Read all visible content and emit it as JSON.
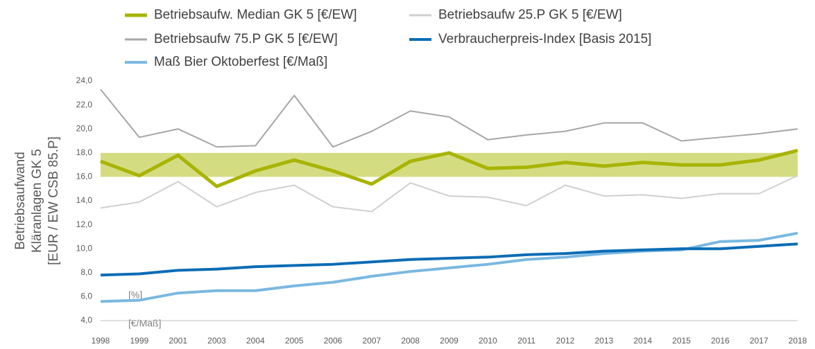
{
  "chart_data": {
    "type": "line",
    "y_label": [
      "Betriebsaufwand",
      "Kläranlagen GK 5",
      "[EUR / EW CSB 85.P]"
    ],
    "categories": [
      "1998",
      "1999",
      "2001",
      "2003",
      "2004",
      "2005",
      "2006",
      "2007",
      "2008",
      "2009",
      "2010",
      "2011",
      "2012",
      "2013",
      "2014",
      "2015",
      "2016",
      "2017",
      "2018"
    ],
    "ylim": [
      4,
      24
    ],
    "yticks": [
      {
        "value": 4,
        "label": "4,0"
      },
      {
        "value": 6,
        "label": "6,0"
      },
      {
        "value": 8,
        "label": "8,0"
      },
      {
        "value": 10,
        "label": "10,0"
      },
      {
        "value": 12,
        "label": "12,0"
      },
      {
        "value": 14,
        "label": "14,0"
      },
      {
        "value": 16,
        "label": "16,0"
      },
      {
        "value": 18,
        "label": "18,0"
      },
      {
        "value": 20,
        "label": "20,0"
      },
      {
        "value": 22,
        "label": "22,0"
      },
      {
        "value": 24,
        "label": "24,0"
      }
    ],
    "band": {
      "range": [
        16,
        18
      ],
      "color": "#d4dc82"
    },
    "series": [
      {
        "name": "Betriebsaufw. Median GK 5 [€/EW]",
        "color": "#a8b400",
        "values": [
          17.3,
          16.1,
          17.8,
          15.2,
          16.5,
          17.4,
          16.5,
          15.4,
          17.3,
          18.0,
          16.7,
          16.8,
          17.2,
          16.9,
          17.2,
          17.0,
          17.0,
          17.4,
          18.2
        ]
      },
      {
        "name": "Betriebsaufw 25.P GK 5 [€/EW]",
        "color": "#cfcfcf",
        "values": [
          13.4,
          13.9,
          15.6,
          13.5,
          14.7,
          15.3,
          13.5,
          13.1,
          15.5,
          14.4,
          14.3,
          13.6,
          15.3,
          14.4,
          14.5,
          14.2,
          14.6,
          14.6,
          16.1
        ]
      },
      {
        "name": "Betriebsaufw 75.P GK 5 [€/EW]",
        "color": "#a6a6a6",
        "values": [
          23.3,
          19.3,
          20.0,
          18.5,
          18.6,
          22.8,
          18.5,
          19.8,
          21.5,
          21.0,
          19.1,
          19.5,
          19.8,
          20.5,
          20.5,
          19.0,
          19.3,
          19.6,
          20.0
        ]
      },
      {
        "name": "Verbraucherpreis-Index [Basis 2015]",
        "color": "#0b6cb5",
        "values": [
          7.8,
          7.9,
          8.2,
          8.3,
          8.5,
          8.6,
          8.7,
          8.9,
          9.1,
          9.2,
          9.3,
          9.5,
          9.6,
          9.8,
          9.9,
          10.0,
          10.0,
          10.2,
          10.4
        ]
      },
      {
        "name": "Maß Bier Oktoberfest [€/Maß]",
        "color": "#7ab8e0",
        "values": [
          5.6,
          5.7,
          6.3,
          6.5,
          6.5,
          6.9,
          7.2,
          7.7,
          8.1,
          8.4,
          8.7,
          9.1,
          9.3,
          9.6,
          9.8,
          9.9,
          10.6,
          10.7,
          11.3
        ]
      }
    ],
    "annotations": [
      "[%]",
      "[€/Maß]"
    ]
  }
}
